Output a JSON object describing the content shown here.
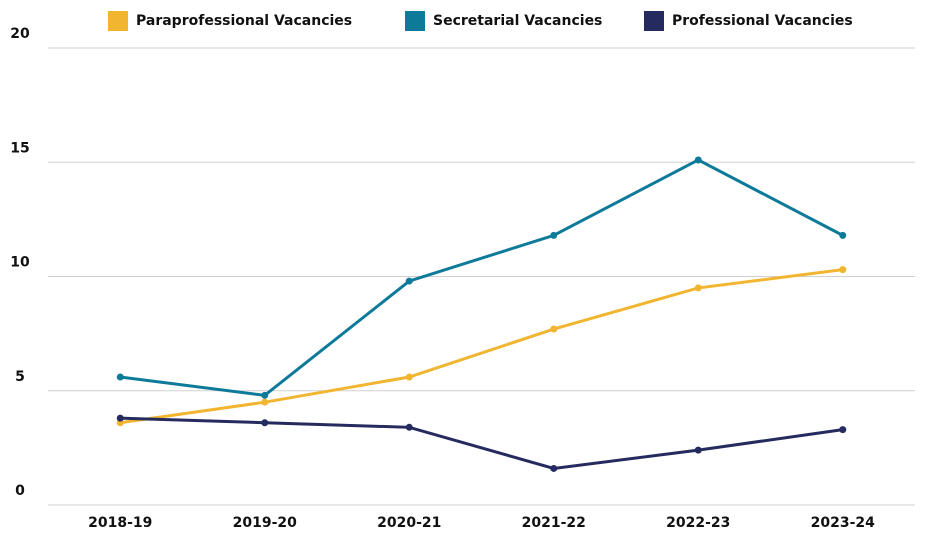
{
  "chart_data": {
    "type": "line",
    "categories": [
      "2018-19",
      "2019-20",
      "2020-21",
      "2021-22",
      "2022-23",
      "2023-24"
    ],
    "series": [
      {
        "name": "Paraprofessional Vacancies",
        "color": "#f1b530",
        "values": [
          3.6,
          4.5,
          5.6,
          7.7,
          9.5,
          10.3
        ]
      },
      {
        "name": "Secretarial Vacancies",
        "color": "#0e7a9a",
        "values": [
          5.6,
          4.8,
          9.8,
          11.8,
          15.1,
          11.8
        ]
      },
      {
        "name": "Professional Vacancies",
        "color": "#252b5e",
        "values": [
          3.8,
          3.6,
          3.4,
          1.6,
          2.4,
          3.3
        ]
      }
    ],
    "ylim": [
      0,
      20
    ],
    "yticks": [
      0,
      5,
      10,
      15,
      20
    ],
    "grid": true,
    "legend": "top"
  }
}
